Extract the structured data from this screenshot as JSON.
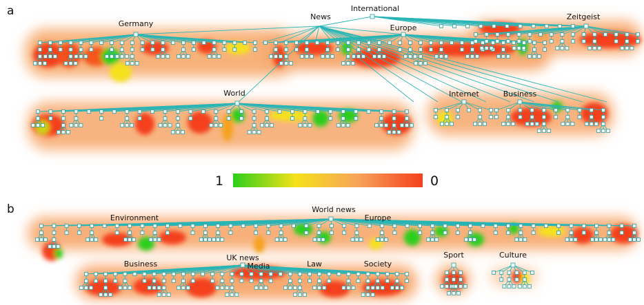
{
  "panels": [
    {
      "letter": "a",
      "labels": [
        "International",
        "News",
        "Germany",
        "Europe",
        "Zeitgeist",
        "World",
        "Internet",
        "Business"
      ]
    },
    {
      "letter": "b",
      "labels": [
        "World news",
        "Environment",
        "Europe",
        "UK news",
        "Media",
        "Business",
        "Law",
        "Society",
        "Sport",
        "Culture"
      ]
    }
  ],
  "colorbar": {
    "left_label": "1",
    "right_label": "0",
    "colors": [
      "#2ccf1c",
      "#f5e11a",
      "#f7a35a",
      "#f4401c"
    ]
  },
  "colors": {
    "edge": "#29b5b5",
    "node_fill": "#e6fbfb",
    "high": "#2ccf1c",
    "mid": "#f5e11a",
    "low": "#f4401c"
  }
}
